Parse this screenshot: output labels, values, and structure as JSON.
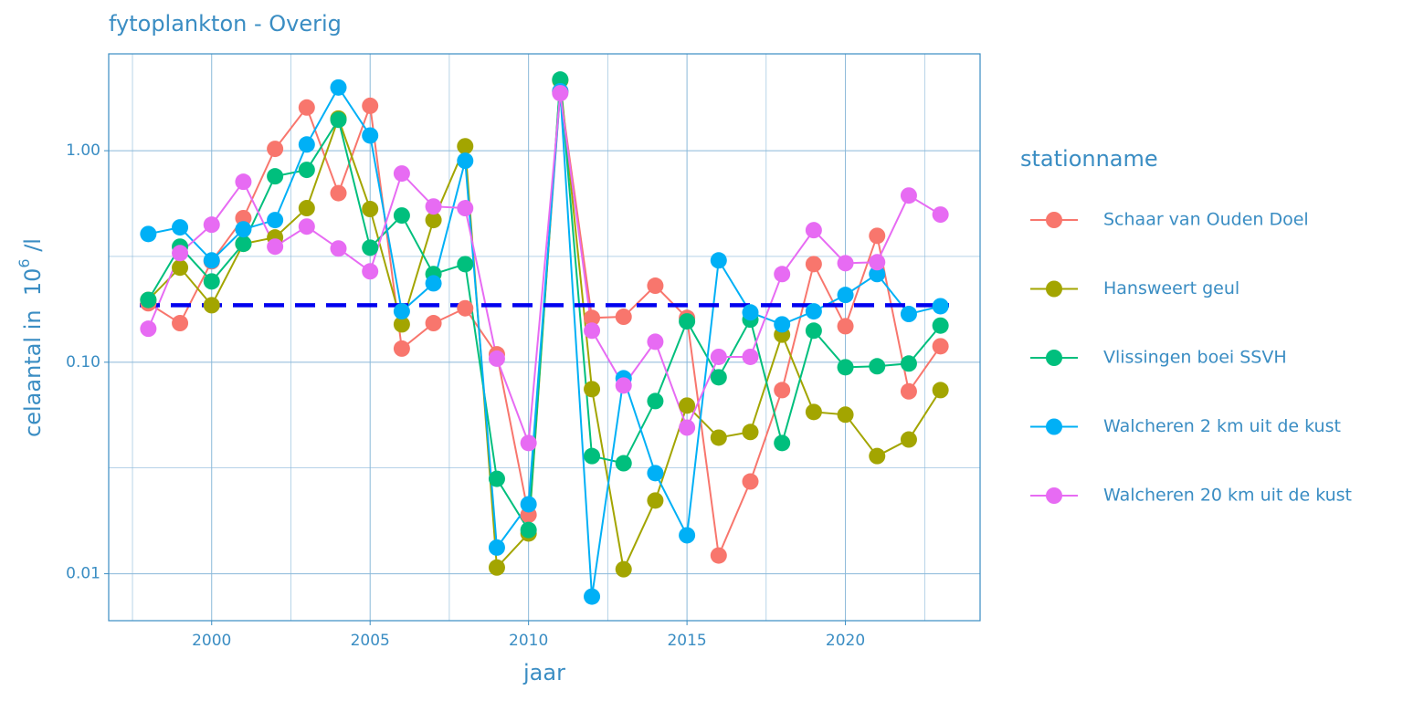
{
  "chart_data": {
    "type": "line",
    "title": "fytoplankton - Overig",
    "xlabel": "jaar",
    "ylabel": "celaantal in  10",
    "ylabel_sup": "6",
    "ylabel_suffix": " /l",
    "legend_title": "stationname",
    "legend_position": "right",
    "log_scale_y": true,
    "grid": true,
    "x": [
      1998,
      1999,
      2000,
      2001,
      2002,
      2003,
      2004,
      2005,
      2006,
      2007,
      2008,
      2009,
      2010,
      2011,
      2012,
      2013,
      2014,
      2015,
      2016,
      2017,
      2018,
      2019,
      2020,
      2021,
      2022,
      2023
    ],
    "xlim": [
      1996.75,
      2024.25
    ],
    "xticks": [
      2000,
      2005,
      2010,
      2015,
      2020
    ],
    "ylim": [
      0.006,
      2.87
    ],
    "yticks": [
      {
        "value": 1,
        "label": "1.00"
      },
      {
        "value": 0.1,
        "label": "0.10"
      },
      0.01
    ],
    "reference_line": {
      "value": 0.186,
      "color": "#0000ee"
    },
    "series": [
      {
        "name": "Schaar van Ouden Doel",
        "color": "#F8766D",
        "values": [
          0.19,
          0.153,
          0.3,
          0.48,
          1.02,
          1.6,
          0.63,
          1.63,
          0.116,
          0.153,
          0.18,
          0.109,
          0.019,
          1.91,
          0.162,
          0.164,
          0.23,
          0.162,
          0.0122,
          0.0273,
          0.0738,
          0.291,
          0.148,
          0.396,
          0.0728,
          0.119
        ]
      },
      {
        "name": "Hansweert geul",
        "color": "#A3A500",
        "values": [
          0.197,
          0.28,
          0.186,
          0.363,
          0.389,
          0.535,
          1.42,
          0.53,
          0.151,
          0.47,
          1.05,
          0.0107,
          0.0155,
          2.15,
          0.0746,
          0.0105,
          0.0222,
          0.0624,
          0.044,
          0.0468,
          0.135,
          0.0582,
          0.0565,
          0.036,
          0.0431,
          0.0738
        ]
      },
      {
        "name": "Vlissingen boei SSVH",
        "color": "#00BF7D",
        "values": [
          0.197,
          0.352,
          0.241,
          0.363,
          0.757,
          0.812,
          1.4,
          0.348,
          0.494,
          0.261,
          0.291,
          0.0281,
          0.0161,
          2.17,
          0.036,
          0.0333,
          0.0655,
          0.156,
          0.0849,
          0.159,
          0.0415,
          0.141,
          0.0947,
          0.0957,
          0.0986,
          0.149
        ]
      },
      {
        "name": "Walcheren 2 km uit de kust",
        "color": "#00B0F6",
        "values": [
          0.404,
          0.434,
          0.303,
          0.425,
          0.47,
          1.07,
          1.99,
          1.18,
          0.174,
          0.236,
          0.896,
          0.0133,
          0.0213,
          1.91,
          0.0078,
          0.084,
          0.0299,
          0.0152,
          0.303,
          0.172,
          0.151,
          0.174,
          0.208,
          0.261,
          0.169,
          0.184
        ]
      },
      {
        "name": "Walcheren 20 km uit de kust",
        "color": "#E76BF3",
        "values": [
          0.144,
          0.328,
          0.447,
          0.713,
          0.352,
          0.438,
          0.345,
          0.269,
          0.78,
          0.545,
          0.535,
          0.104,
          0.0415,
          1.87,
          0.141,
          0.0776,
          0.125,
          0.0491,
          0.106,
          0.106,
          0.261,
          0.421,
          0.294,
          0.297,
          0.614,
          0.499
        ]
      }
    ]
  }
}
